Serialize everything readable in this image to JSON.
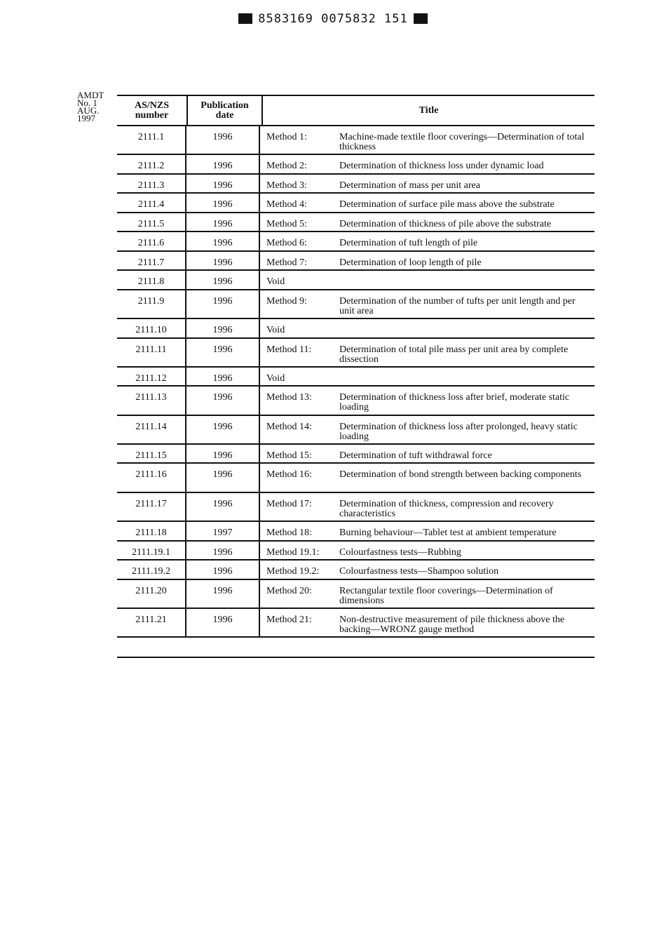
{
  "header_code": "8583169 0075832 151",
  "amendment_note": [
    "AMDT",
    "No. 1",
    "AUG.",
    "1997"
  ],
  "table": {
    "headers": {
      "number": [
        "AS/NZS",
        "number"
      ],
      "date": [
        "Publication",
        "date"
      ],
      "title": "Title"
    },
    "rows": [
      {
        "number": "2111.1",
        "date": "1996",
        "method": "Method 1:",
        "title": "Machine-made textile floor coverings—Determination of total thickness",
        "lines": 2
      },
      {
        "number": "2111.2",
        "date": "1996",
        "method": "Method 2:",
        "title": "Determination of thickness loss under dynamic load",
        "lines": 1
      },
      {
        "number": "2111.3",
        "date": "1996",
        "method": "Method 3:",
        "title": "Determination of mass per unit area",
        "lines": 1
      },
      {
        "number": "2111.4",
        "date": "1996",
        "method": "Method 4:",
        "title": "Determination of surface pile mass above the substrate",
        "lines": 1
      },
      {
        "number": "2111.5",
        "date": "1996",
        "method": "Method 5:",
        "title": "Determination of thickness of pile above the substrate",
        "lines": 1
      },
      {
        "number": "2111.6",
        "date": "1996",
        "method": "Method 6:",
        "title": "Determination of tuft length of pile",
        "lines": 1
      },
      {
        "number": "2111.7",
        "date": "1996",
        "method": "Method 7:",
        "title": "Determination of loop length of pile",
        "lines": 1
      },
      {
        "number": "2111.8",
        "date": "1996",
        "method": "Void",
        "title": "",
        "lines": 1
      },
      {
        "number": "2111.9",
        "date": "1996",
        "method": "Method 9:",
        "title": "Determination of the number of tufts per unit length and per unit area",
        "lines": 2
      },
      {
        "number": "2111.10",
        "date": "1996",
        "method": "Void",
        "title": "",
        "lines": 1
      },
      {
        "number": "2111.11",
        "date": "1996",
        "method": "Method 11:",
        "title": "Determination of total pile mass per unit area by complete dissection",
        "lines": 2
      },
      {
        "number": "2111.12",
        "date": "1996",
        "method": "Void",
        "title": "",
        "lines": 1
      },
      {
        "number": "2111.13",
        "date": "1996",
        "method": "Method 13:",
        "title": "Determination of thickness loss after brief, moderate static loading",
        "lines": 2
      },
      {
        "number": "2111.14",
        "date": "1996",
        "method": "Method 14:",
        "title": "Determination of thickness loss after prolonged, heavy static loading",
        "lines": 2
      },
      {
        "number": "2111.15",
        "date": "1996",
        "method": "Method 15:",
        "title": "Determination of tuft withdrawal force",
        "lines": 1
      },
      {
        "number": "2111.16",
        "date": "1996",
        "method": "Method 16:",
        "title": "Determination of bond strength between backing components",
        "lines": 2
      },
      {
        "number": "2111.17",
        "date": "1996",
        "method": "Method 17:",
        "title": "Determination of thickness, compression and recovery characteristics",
        "lines": 2
      },
      {
        "number": "2111.18",
        "date": "1997",
        "method": "Method 18:",
        "title": "Burning behaviour—Tablet test at ambient temperature",
        "lines": 1
      },
      {
        "number": "2111.19.1",
        "date": "1996",
        "method": "Method 19.1:",
        "title": "Colourfastness tests—Rubbing",
        "lines": 1
      },
      {
        "number": "2111.19.2",
        "date": "1996",
        "method": "Method 19.2:",
        "title": "Colourfastness tests—Shampoo solution",
        "lines": 1
      },
      {
        "number": "2111.20",
        "date": "1996",
        "method": "Method 20:",
        "title": "Rectangular textile floor coverings—Determination of dimensions",
        "lines": 2
      },
      {
        "number": "2111.21",
        "date": "1996",
        "method": "Method 21:",
        "title": "Non-destructive measurement of pile thickness above the backing—WRONZ gauge method",
        "lines": 2
      }
    ]
  }
}
